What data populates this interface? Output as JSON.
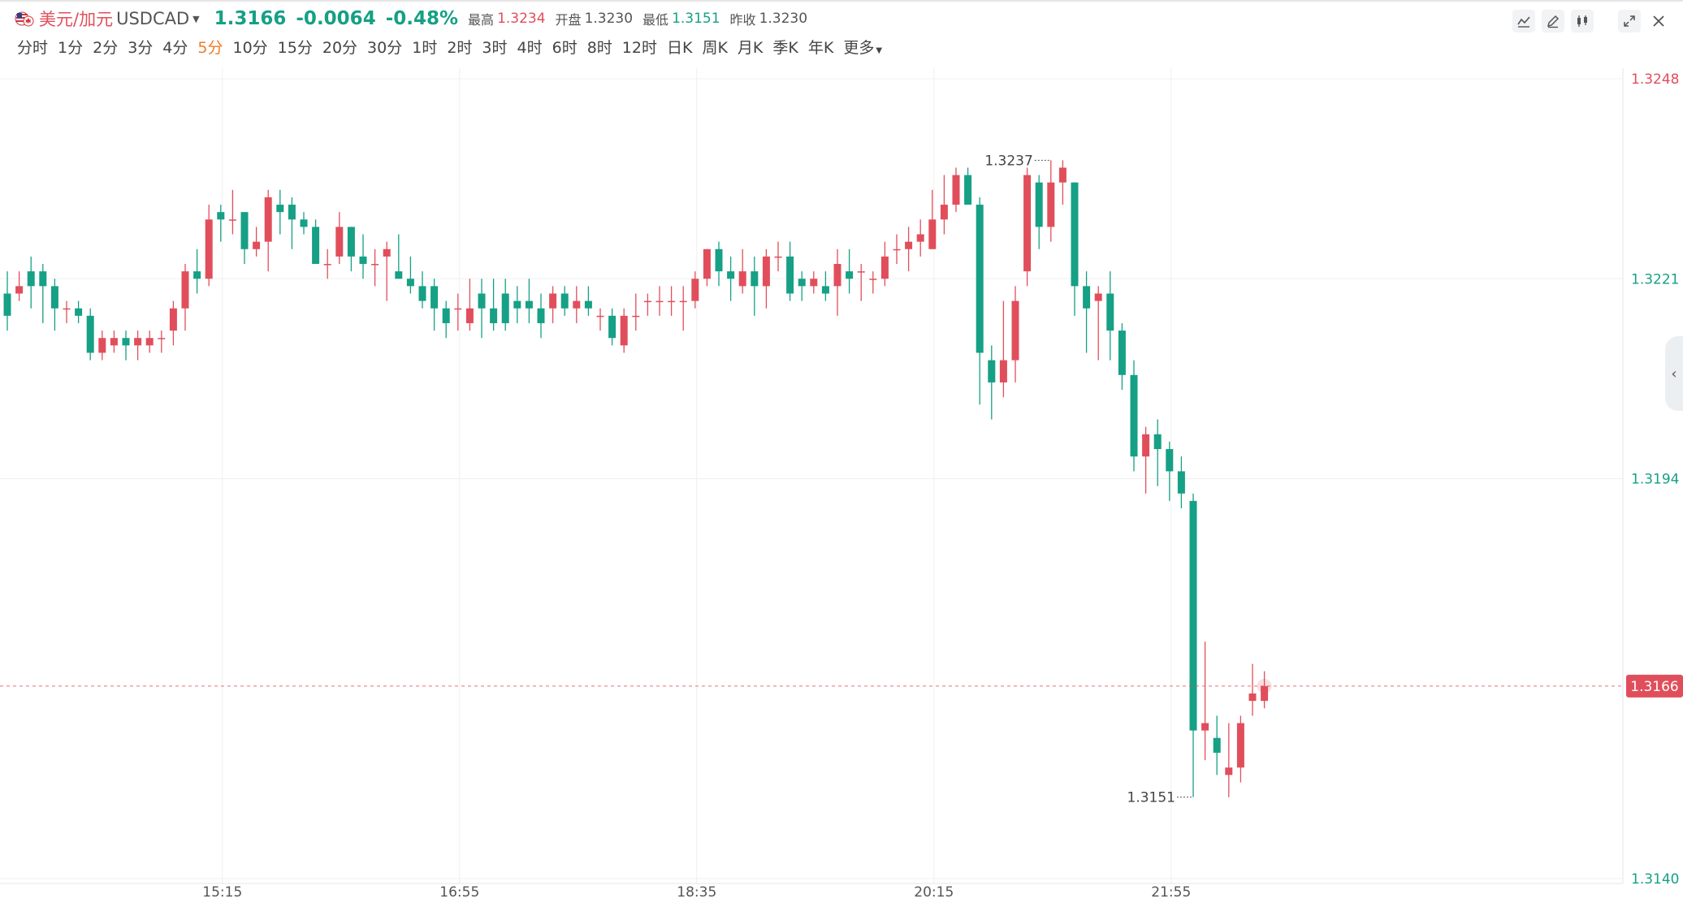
{
  "header": {
    "pair_cn": "美元/加元",
    "pair_code": "USDCAD",
    "price": "1.3166",
    "change": "-0.0064",
    "change_pct": "-0.48%",
    "high_label": "最高",
    "high": "1.3234",
    "open_label": "开盘",
    "open": "1.3230",
    "low_label": "最低",
    "low": "1.3151",
    "prev_label": "昨收",
    "prev": "1.3230"
  },
  "periods": [
    "分时",
    "1分",
    "2分",
    "3分",
    "4分",
    "5分",
    "10分",
    "15分",
    "20分",
    "30分",
    "1时",
    "2时",
    "3时",
    "4时",
    "6时",
    "8时",
    "12时",
    "日K",
    "周K",
    "月K",
    "季K",
    "年K",
    "更多"
  ],
  "active_period": "5分",
  "tools": [
    "indicator-icon",
    "draw-icon",
    "candle-type-icon",
    "fullscreen-icon",
    "close-icon"
  ],
  "colors": {
    "up": "#e14e5b",
    "down": "#16a085",
    "active": "#f07a2a"
  },
  "chart_data": {
    "type": "candlestick",
    "y_axis_ticks": [
      1.3248,
      1.3221,
      1.3194,
      1.314
    ],
    "ylim": [
      1.314,
      1.3248
    ],
    "x_axis_ticks": [
      "15:15",
      "16:55",
      "18:35",
      "20:15",
      "21:55"
    ],
    "last_price": 1.3166,
    "last_price_label": "1.3166",
    "max_label": "1.3237",
    "min_label": "1.3151",
    "grid": true,
    "candles": [
      [
        1.3219,
        1.3216,
        1.3222,
        1.3214
      ],
      [
        1.3219,
        1.322,
        1.3222,
        1.3218
      ],
      [
        1.3222,
        1.322,
        1.3224,
        1.3217
      ],
      [
        1.3222,
        1.322,
        1.3223,
        1.3215
      ],
      [
        1.322,
        1.3217,
        1.3221,
        1.3214
      ],
      [
        1.3217,
        1.3217,
        1.3218,
        1.3215
      ],
      [
        1.3217,
        1.3216,
        1.3218,
        1.3215
      ],
      [
        1.3216,
        1.3211,
        1.3217,
        1.321
      ],
      [
        1.3211,
        1.3213,
        1.3214,
        1.321
      ],
      [
        1.3212,
        1.3213,
        1.3214,
        1.3211
      ],
      [
        1.3213,
        1.3212,
        1.3214,
        1.321
      ],
      [
        1.3212,
        1.3213,
        1.3214,
        1.321
      ],
      [
        1.3212,
        1.3213,
        1.3214,
        1.3211
      ],
      [
        1.3213,
        1.3213,
        1.3214,
        1.3211
      ],
      [
        1.3214,
        1.3217,
        1.3218,
        1.3212
      ],
      [
        1.3217,
        1.3222,
        1.3223,
        1.3214
      ],
      [
        1.3222,
        1.3221,
        1.3225,
        1.3219
      ],
      [
        1.3221,
        1.3229,
        1.3231,
        1.322
      ],
      [
        1.323,
        1.3229,
        1.3231,
        1.3226
      ],
      [
        1.3229,
        1.3229,
        1.3233,
        1.3227
      ],
      [
        1.323,
        1.3225,
        1.323,
        1.3223
      ],
      [
        1.3225,
        1.3226,
        1.3228,
        1.3224
      ],
      [
        1.3226,
        1.3232,
        1.3233,
        1.3222
      ],
      [
        1.3231,
        1.323,
        1.3233,
        1.3227
      ],
      [
        1.3231,
        1.3229,
        1.3232,
        1.3225
      ],
      [
        1.3229,
        1.3228,
        1.323,
        1.3227
      ],
      [
        1.3228,
        1.3223,
        1.3229,
        1.3223
      ],
      [
        1.3223,
        1.3223,
        1.3225,
        1.3221
      ],
      [
        1.3224,
        1.3228,
        1.323,
        1.3223
      ],
      [
        1.3228,
        1.3224,
        1.3228,
        1.3222
      ],
      [
        1.3224,
        1.3223,
        1.3227,
        1.3221
      ],
      [
        1.3223,
        1.3223,
        1.3225,
        1.322
      ],
      [
        1.3224,
        1.3225,
        1.3226,
        1.3218
      ],
      [
        1.3222,
        1.3221,
        1.3227,
        1.3221
      ],
      [
        1.3221,
        1.322,
        1.3224,
        1.3219
      ],
      [
        1.322,
        1.3218,
        1.3222,
        1.3217
      ],
      [
        1.322,
        1.3217,
        1.3221,
        1.3214
      ],
      [
        1.3217,
        1.3215,
        1.3218,
        1.3213
      ],
      [
        1.3217,
        1.3217,
        1.3219,
        1.3214
      ],
      [
        1.3215,
        1.3217,
        1.3221,
        1.3214
      ],
      [
        1.3219,
        1.3217,
        1.3221,
        1.3213
      ],
      [
        1.3217,
        1.3215,
        1.3221,
        1.3214
      ],
      [
        1.3219,
        1.3215,
        1.3221,
        1.3214
      ],
      [
        1.3218,
        1.3217,
        1.322,
        1.3215
      ],
      [
        1.3218,
        1.3217,
        1.3221,
        1.3215
      ],
      [
        1.3217,
        1.3215,
        1.3219,
        1.3213
      ],
      [
        1.3217,
        1.3219,
        1.322,
        1.3215
      ],
      [
        1.3219,
        1.3217,
        1.322,
        1.3216
      ],
      [
        1.3217,
        1.3218,
        1.322,
        1.3215
      ],
      [
        1.3218,
        1.3217,
        1.322,
        1.3216
      ],
      [
        1.3216,
        1.3216,
        1.3217,
        1.3214
      ],
      [
        1.3216,
        1.3213,
        1.3217,
        1.3212
      ],
      [
        1.3212,
        1.3216,
        1.3217,
        1.3211
      ],
      [
        1.3216,
        1.3216,
        1.3219,
        1.3214
      ],
      [
        1.3218,
        1.3218,
        1.3219,
        1.3216
      ],
      [
        1.3218,
        1.3218,
        1.322,
        1.3216
      ],
      [
        1.3218,
        1.3218,
        1.322,
        1.3216
      ],
      [
        1.3218,
        1.3218,
        1.322,
        1.3214
      ],
      [
        1.3218,
        1.3221,
        1.3222,
        1.3217
      ],
      [
        1.3221,
        1.3225,
        1.3225,
        1.322
      ],
      [
        1.3225,
        1.3222,
        1.3226,
        1.322
      ],
      [
        1.3222,
        1.3221,
        1.3224,
        1.3218
      ],
      [
        1.322,
        1.3222,
        1.3225,
        1.3219
      ],
      [
        1.3222,
        1.322,
        1.3224,
        1.3216
      ],
      [
        1.322,
        1.3224,
        1.3225,
        1.3217
      ],
      [
        1.3224,
        1.3224,
        1.3226,
        1.3222
      ],
      [
        1.3224,
        1.3219,
        1.3226,
        1.3218
      ],
      [
        1.3221,
        1.322,
        1.3222,
        1.3218
      ],
      [
        1.322,
        1.3221,
        1.3222,
        1.3219
      ],
      [
        1.322,
        1.3219,
        1.3222,
        1.3218
      ],
      [
        1.322,
        1.3223,
        1.3225,
        1.3216
      ],
      [
        1.3222,
        1.3221,
        1.3225,
        1.3219
      ],
      [
        1.3222,
        1.3222,
        1.3223,
        1.3218
      ],
      [
        1.3221,
        1.3221,
        1.3222,
        1.3219
      ],
      [
        1.3221,
        1.3224,
        1.3226,
        1.322
      ],
      [
        1.3225,
        1.3225,
        1.3227,
        1.3223
      ],
      [
        1.3225,
        1.3226,
        1.3228,
        1.3222
      ],
      [
        1.3226,
        1.3227,
        1.3229,
        1.3224
      ],
      [
        1.3225,
        1.3229,
        1.3233,
        1.3225
      ],
      [
        1.3229,
        1.3231,
        1.3235,
        1.3227
      ],
      [
        1.3231,
        1.3235,
        1.3236,
        1.323
      ],
      [
        1.3235,
        1.3231,
        1.3236,
        1.3231
      ],
      [
        1.3231,
        1.3211,
        1.3232,
        1.3204
      ],
      [
        1.321,
        1.3207,
        1.3212,
        1.3202
      ],
      [
        1.3207,
        1.321,
        1.3218,
        1.3205
      ],
      [
        1.321,
        1.3218,
        1.322,
        1.3207
      ],
      [
        1.3222,
        1.3235,
        1.3236,
        1.322
      ],
      [
        1.3234,
        1.3228,
        1.3235,
        1.3225
      ],
      [
        1.3228,
        1.3234,
        1.3237,
        1.3226
      ],
      [
        1.3234,
        1.3236,
        1.3237,
        1.3231
      ],
      [
        1.3234,
        1.322,
        1.3234,
        1.3216
      ],
      [
        1.322,
        1.3217,
        1.3222,
        1.3211
      ],
      [
        1.3218,
        1.3219,
        1.322,
        1.321
      ],
      [
        1.3219,
        1.3214,
        1.3222,
        1.321
      ],
      [
        1.3214,
        1.3208,
        1.3215,
        1.3206
      ],
      [
        1.3208,
        1.3197,
        1.321,
        1.3195
      ],
      [
        1.3197,
        1.32,
        1.3201,
        1.3192
      ],
      [
        1.32,
        1.3198,
        1.3202,
        1.3193
      ],
      [
        1.3198,
        1.3195,
        1.3199,
        1.3191
      ],
      [
        1.3195,
        1.3192,
        1.3197,
        1.319
      ],
      [
        1.3191,
        1.316,
        1.3192,
        1.3151
      ],
      [
        1.316,
        1.3161,
        1.3172,
        1.3156
      ],
      [
        1.3159,
        1.3157,
        1.3162,
        1.3154
      ],
      [
        1.3154,
        1.3155,
        1.3161,
        1.3151
      ],
      [
        1.3155,
        1.3161,
        1.3162,
        1.3153
      ],
      [
        1.3164,
        1.3165,
        1.3169,
        1.3162
      ],
      [
        1.3164,
        1.3166,
        1.3168,
        1.3163
      ]
    ]
  }
}
